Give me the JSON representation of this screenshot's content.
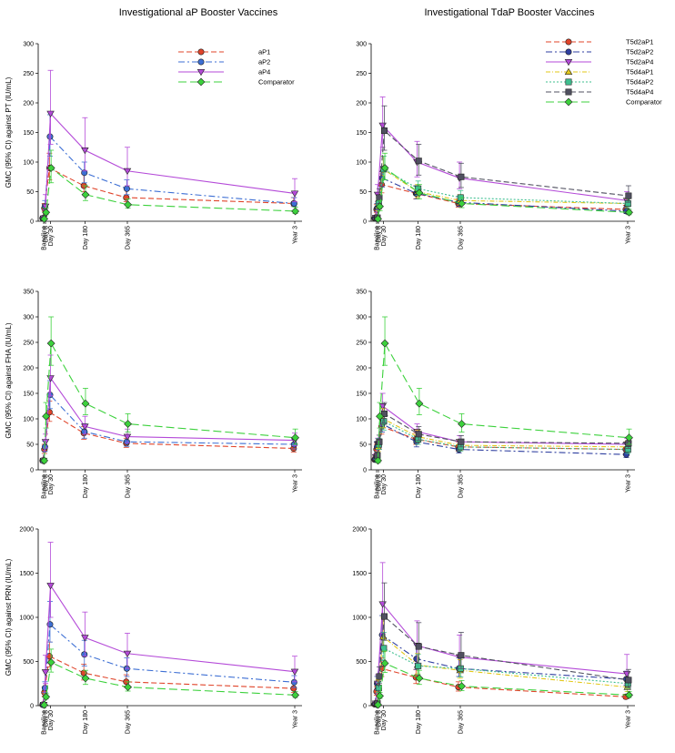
{
  "titles": {
    "left": "Investigational aP Booster Vaccines",
    "right": "Investigational TdaP Booster Vaccines"
  },
  "colors": {
    "aP1": "#e0442a",
    "aP2": "#3d6fd4",
    "aP4": "#b44ad8",
    "Comparator": "#3cd13c",
    "T5d2aP1": "#e0442a",
    "T5d2aP2": "#2f3fa0",
    "T5d2aP4": "#b44ad8",
    "T5d4aP1": "#e3c81a",
    "T5d4aP2": "#3fbf8f",
    "T5d4aP4": "#505060"
  },
  "x_positions_days": [
    0,
    8,
    30,
    180,
    365,
    1095
  ],
  "chart_data": [
    {
      "type": "line",
      "panel": "left-pt",
      "categories": [
        "Baseline",
        "Day 8",
        "Day 30",
        "Day 180",
        "Day 365",
        "Year 3"
      ],
      "ylabel": "GMC (95% CI) against PT (IU/mL)",
      "ylim": [
        0,
        300
      ],
      "yticks": [
        "0",
        "50",
        "100",
        "150",
        "200",
        "250",
        "300"
      ],
      "legend_position": "top-right",
      "series": [
        {
          "name": "aP1",
          "marker": "circle",
          "values": [
            5,
            22,
            90,
            60,
            40,
            30
          ],
          "lower": [
            4,
            17,
            70,
            50,
            33,
            25
          ],
          "upper": [
            6,
            30,
            115,
            80,
            55,
            40
          ]
        },
        {
          "name": "aP2",
          "marker": "circle",
          "values": [
            5,
            25,
            143,
            82,
            55,
            30
          ],
          "lower": [
            4,
            19,
            110,
            65,
            45,
            25
          ],
          "upper": [
            6,
            35,
            180,
            100,
            70,
            40
          ]
        },
        {
          "name": "aP4",
          "marker": "triangle-down",
          "values": [
            5,
            25,
            182,
            120,
            85,
            47
          ],
          "lower": [
            4,
            19,
            130,
            85,
            60,
            33
          ],
          "upper": [
            6,
            45,
            255,
            175,
            125,
            72
          ]
        },
        {
          "name": "Comparator",
          "marker": "diamond",
          "values": [
            4,
            15,
            90,
            45,
            28,
            17
          ],
          "lower": [
            3,
            11,
            65,
            35,
            22,
            13
          ],
          "upper": [
            5,
            22,
            120,
            60,
            38,
            24
          ]
        }
      ]
    },
    {
      "type": "line",
      "panel": "right-pt",
      "categories": [
        "Baseline",
        "Day 8",
        "Day 30",
        "Day 180",
        "Day 365",
        "Year 3"
      ],
      "ylabel": "",
      "ylim": [
        0,
        300
      ],
      "yticks": [
        "0",
        "50",
        "100",
        "150",
        "200",
        "250",
        "300"
      ],
      "legend_position": "top-right",
      "series": [
        {
          "name": "T5d2aP1",
          "marker": "circle",
          "values": [
            5,
            20,
            62,
            47,
            30,
            20
          ],
          "lower": [
            4,
            15,
            48,
            38,
            24,
            15
          ],
          "upper": [
            6,
            28,
            80,
            60,
            38,
            27
          ]
        },
        {
          "name": "T5d2aP2",
          "marker": "circle",
          "values": [
            5,
            22,
            73,
            47,
            32,
            17
          ],
          "lower": [
            4,
            16,
            58,
            38,
            25,
            13
          ],
          "upper": [
            6,
            30,
            92,
            60,
            42,
            23
          ]
        },
        {
          "name": "T5d2aP4",
          "marker": "triangle-down",
          "values": [
            6,
            45,
            162,
            100,
            73,
            35
          ],
          "lower": [
            4,
            33,
            125,
            75,
            55,
            25
          ],
          "upper": [
            8,
            62,
            210,
            135,
            100,
            50
          ]
        },
        {
          "name": "T5d4aP1",
          "marker": "triangle-up",
          "values": [
            5,
            25,
            88,
            50,
            35,
            30
          ],
          "lower": [
            4,
            18,
            70,
            40,
            28,
            23
          ],
          "upper": [
            6,
            33,
            110,
            62,
            45,
            38
          ]
        },
        {
          "name": "T5d4aP2",
          "marker": "square",
          "values": [
            5,
            30,
            88,
            55,
            40,
            30
          ],
          "lower": [
            4,
            22,
            70,
            44,
            31,
            23
          ],
          "upper": [
            6,
            40,
            110,
            68,
            52,
            38
          ]
        },
        {
          "name": "T5d4aP4",
          "marker": "square",
          "values": [
            6,
            40,
            153,
            102,
            75,
            43
          ],
          "lower": [
            4,
            30,
            120,
            78,
            57,
            32
          ],
          "upper": [
            8,
            55,
            195,
            130,
            98,
            60
          ]
        },
        {
          "name": "Comparator",
          "marker": "diamond",
          "values": [
            4,
            25,
            90,
            48,
            30,
            15
          ],
          "lower": [
            3,
            18,
            70,
            38,
            23,
            11
          ],
          "upper": [
            5,
            35,
            115,
            62,
            40,
            20
          ]
        }
      ]
    },
    {
      "type": "line",
      "panel": "left-fha",
      "categories": [
        "Baseline",
        "Day 8",
        "Day 30",
        "Day 180",
        "Day 365",
        "Year 3"
      ],
      "ylabel": "GMC (95% CI) against FHA (IU/mL)",
      "ylim": [
        0,
        350
      ],
      "yticks": [
        "0",
        "50",
        "100",
        "150",
        "200",
        "250",
        "300",
        "350"
      ],
      "series": [
        {
          "name": "aP1",
          "values": [
            18,
            40,
            113,
            72,
            52,
            42
          ],
          "lower": [
            14,
            32,
            95,
            60,
            44,
            35
          ],
          "upper": [
            22,
            50,
            135,
            85,
            62,
            52
          ]
        },
        {
          "name": "aP2",
          "values": [
            18,
            45,
            147,
            75,
            55,
            50
          ],
          "lower": [
            14,
            36,
            120,
            62,
            46,
            41
          ],
          "upper": [
            22,
            56,
            175,
            90,
            66,
            60
          ]
        },
        {
          "name": "aP4",
          "values": [
            18,
            55,
            180,
            85,
            65,
            58
          ],
          "lower": [
            14,
            43,
            145,
            70,
            53,
            47
          ],
          "upper": [
            22,
            70,
            225,
            105,
            80,
            72
          ]
        },
        {
          "name": "Comparator",
          "values": [
            18,
            105,
            248,
            130,
            90,
            63
          ],
          "lower": [
            14,
            82,
            205,
            108,
            74,
            50
          ],
          "upper": [
            22,
            132,
            300,
            160,
            110,
            80
          ]
        }
      ]
    },
    {
      "type": "line",
      "panel": "right-fha",
      "categories": [
        "Baseline",
        "Day 8",
        "Day 30",
        "Day 180",
        "Day 365",
        "Year 3"
      ],
      "ylabel": "",
      "ylim": [
        0,
        350
      ],
      "yticks": [
        "0",
        "50",
        "100",
        "150",
        "200",
        "250",
        "300",
        "350"
      ],
      "series": [
        {
          "name": "T5d2aP1",
          "values": [
            20,
            40,
            85,
            60,
            45,
            40
          ],
          "lower": [
            16,
            32,
            70,
            50,
            37,
            32
          ],
          "upper": [
            25,
            50,
            102,
            72,
            55,
            50
          ]
        },
        {
          "name": "T5d2aP2",
          "values": [
            20,
            45,
            90,
            55,
            40,
            30
          ],
          "lower": [
            16,
            36,
            74,
            45,
            33,
            24
          ],
          "upper": [
            25,
            56,
            108,
            67,
            49,
            38
          ]
        },
        {
          "name": "T5d2aP4",
          "values": [
            25,
            50,
            125,
            75,
            55,
            50
          ],
          "lower": [
            20,
            40,
            104,
            62,
            45,
            40
          ],
          "upper": [
            31,
            62,
            150,
            90,
            67,
            62
          ]
        },
        {
          "name": "T5d4aP1",
          "values": [
            22,
            45,
            100,
            65,
            48,
            45
          ],
          "lower": [
            17,
            36,
            83,
            54,
            39,
            36
          ],
          "upper": [
            28,
            56,
            120,
            78,
            58,
            56
          ]
        },
        {
          "name": "T5d4aP2",
          "values": [
            22,
            50,
            95,
            60,
            45,
            40
          ],
          "lower": [
            17,
            40,
            78,
            50,
            37,
            32
          ],
          "upper": [
            28,
            62,
            115,
            72,
            55,
            50
          ]
        },
        {
          "name": "T5d4aP4",
          "values": [
            28,
            55,
            110,
            70,
            55,
            52
          ],
          "lower": [
            22,
            44,
            92,
            58,
            45,
            42
          ],
          "upper": [
            35,
            68,
            132,
            85,
            67,
            64
          ]
        },
        {
          "name": "Comparator",
          "values": [
            18,
            105,
            248,
            130,
            90,
            63
          ],
          "lower": [
            14,
            82,
            205,
            108,
            74,
            50
          ],
          "upper": [
            22,
            132,
            300,
            160,
            110,
            80
          ]
        }
      ]
    },
    {
      "type": "line",
      "panel": "left-prn",
      "categories": [
        "Baseline",
        "Day 8",
        "Day 30",
        "Day 180",
        "Day 365",
        "Year 3"
      ],
      "ylabel": "GMC (95% CI) against PRN (IU/mL)",
      "ylim": [
        0,
        2000
      ],
      "yticks": [
        "0",
        "500",
        "1000",
        "1500",
        "2000"
      ],
      "series": [
        {
          "name": "aP1",
          "values": [
            10,
            150,
            560,
            370,
            270,
            195
          ],
          "lower": [
            8,
            110,
            440,
            290,
            210,
            150
          ],
          "upper": [
            13,
            210,
            720,
            470,
            350,
            255
          ]
        },
        {
          "name": "aP2",
          "values": [
            10,
            200,
            920,
            580,
            420,
            265
          ],
          "lower": [
            8,
            150,
            720,
            450,
            330,
            205
          ],
          "upper": [
            13,
            270,
            1180,
            740,
            540,
            340
          ]
        },
        {
          "name": "aP4",
          "values": [
            10,
            380,
            1360,
            770,
            590,
            385
          ],
          "lower": [
            8,
            250,
            1000,
            560,
            420,
            270
          ],
          "upper": [
            13,
            570,
            1850,
            1060,
            820,
            560
          ]
        },
        {
          "name": "Comparator",
          "values": [
            8,
            100,
            490,
            310,
            210,
            120
          ],
          "lower": [
            6,
            75,
            380,
            240,
            165,
            92
          ],
          "upper": [
            11,
            135,
            640,
            400,
            270,
            158
          ]
        }
      ]
    },
    {
      "type": "line",
      "panel": "right-prn",
      "categories": [
        "Baseline",
        "Day 8",
        "Day 30",
        "Day 180",
        "Day 365",
        "Year 3"
      ],
      "ylabel": "",
      "ylim": [
        0,
        2000
      ],
      "yticks": [
        "0",
        "500",
        "1000",
        "1500",
        "2000"
      ],
      "series": [
        {
          "name": "T5d2aP1",
          "values": [
            15,
            160,
            420,
            320,
            210,
            100
          ],
          "lower": [
            12,
            120,
            330,
            250,
            165,
            78
          ],
          "upper": [
            19,
            215,
            540,
            410,
            270,
            130
          ]
        },
        {
          "name": "T5d2aP2",
          "values": [
            20,
            250,
            800,
            530,
            420,
            300
          ],
          "lower": [
            15,
            190,
            630,
            410,
            330,
            230
          ],
          "upper": [
            26,
            330,
            1020,
            690,
            540,
            390
          ]
        },
        {
          "name": "T5d2aP4",
          "values": [
            25,
            250,
            1150,
            680,
            550,
            360
          ],
          "lower": [
            19,
            180,
            820,
            480,
            380,
            250
          ],
          "upper": [
            33,
            350,
            1620,
            960,
            800,
            580
          ]
        },
        {
          "name": "T5d4aP1",
          "values": [
            18,
            220,
            780,
            460,
            400,
            210
          ],
          "lower": [
            14,
            165,
            610,
            360,
            310,
            160
          ],
          "upper": [
            23,
            290,
            1000,
            590,
            520,
            275
          ]
        },
        {
          "name": "T5d4aP2",
          "values": [
            18,
            200,
            650,
            450,
            420,
            250
          ],
          "lower": [
            14,
            150,
            510,
            350,
            325,
            195
          ],
          "upper": [
            23,
            265,
            830,
            580,
            545,
            320
          ]
        },
        {
          "name": "T5d4aP4",
          "values": [
            25,
            330,
            1010,
            670,
            570,
            290
          ],
          "lower": [
            19,
            250,
            740,
            480,
            420,
            205
          ],
          "upper": [
            33,
            440,
            1390,
            940,
            830,
            410
          ]
        },
        {
          "name": "Comparator",
          "values": [
            10,
            110,
            480,
            310,
            220,
            120
          ],
          "lower": [
            8,
            82,
            375,
            240,
            170,
            92
          ],
          "upper": [
            13,
            148,
            620,
            400,
            285,
            158
          ]
        }
      ]
    }
  ]
}
